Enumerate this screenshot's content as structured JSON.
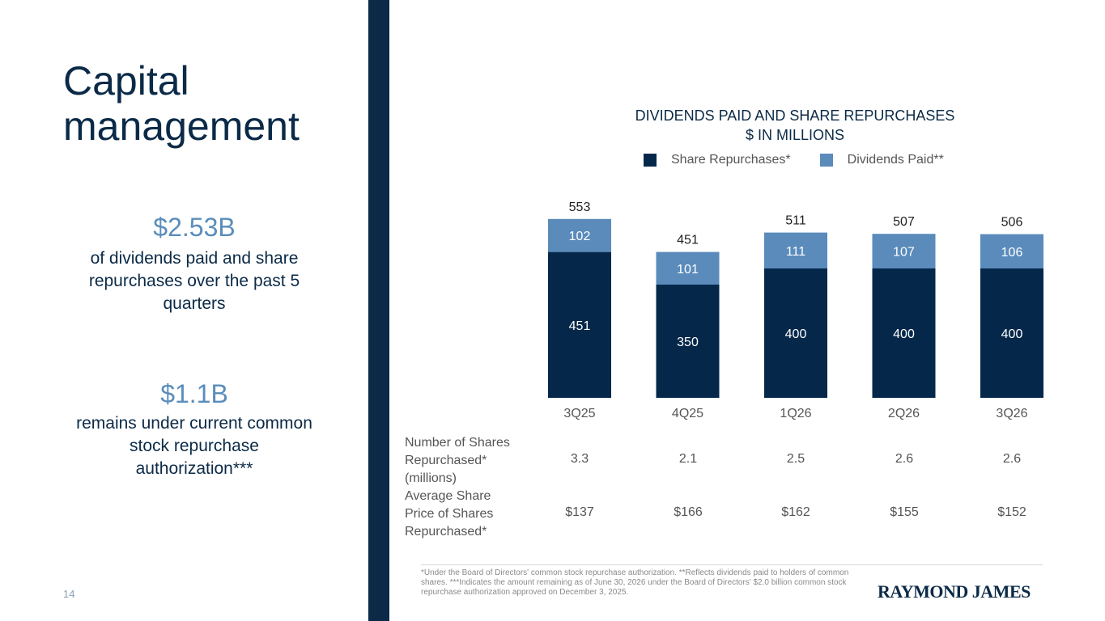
{
  "page": {
    "title": "Capital\nmanagement",
    "page_number": "14"
  },
  "stats": [
    {
      "value": "$2.53B",
      "description": "of dividends paid and share repurchases over the past 5 quarters"
    },
    {
      "value": "$1.1B",
      "description": "remains under current common stock repurchase authorization***"
    }
  ],
  "colors": {
    "dark_navy": "#0b2a47",
    "light_blue": "#5a8dbb",
    "share_repurchases": "#05284a",
    "dividends_paid": "#5a8bbb"
  },
  "chart_data": {
    "type": "bar",
    "stacked": true,
    "title": "DIVIDENDS PAID AND SHARE REPURCHASES\n$ IN MILLIONS",
    "categories": [
      "3Q25",
      "4Q25",
      "1Q26",
      "2Q26",
      "3Q26"
    ],
    "series": [
      {
        "name": "Share Repurchases*",
        "color": "#05284a",
        "values": [
          451,
          350,
          400,
          400,
          400
        ]
      },
      {
        "name": "Dividends Paid**",
        "color": "#5a8bbb",
        "values": [
          102,
          101,
          111,
          107,
          106
        ]
      }
    ],
    "totals": [
      553,
      451,
      511,
      507,
      506
    ],
    "legend_position": "top",
    "grid": false,
    "ylim": [
      0,
      600
    ]
  },
  "table": {
    "rows": [
      {
        "label": "Number of Shares\nRepurchased*\n(millions)",
        "values": [
          "3.3",
          "2.1",
          "2.5",
          "2.6",
          "2.6"
        ]
      },
      {
        "label": "Average Share\nPrice of Shares\nRepurchased*",
        "values": [
          "$137",
          "$166",
          "$162",
          "$155",
          "$152"
        ]
      }
    ]
  },
  "footer": {
    "footnote": "*Under the Board of Directors' common stock repurchase authorization. **Reflects dividends paid to holders of common shares. ***Indicates the amount remaining as of June 30, 2026 under the Board of Directors' $2.0 billion common stock repurchase authorization approved on December 3, 2025.",
    "logo": "RAYMOND JAMES"
  }
}
